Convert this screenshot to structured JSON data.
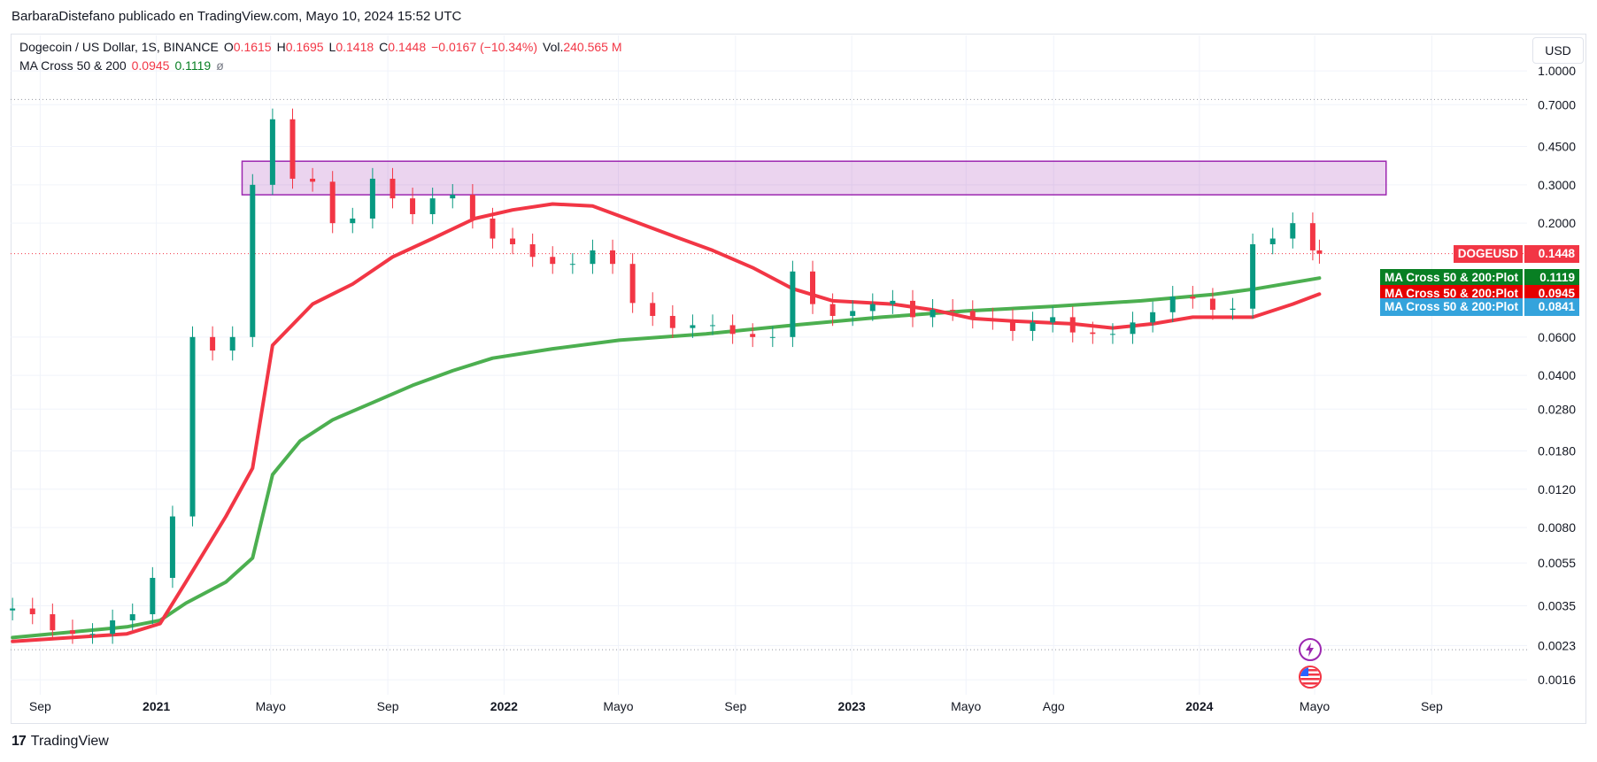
{
  "header": {
    "publisher_line": "BarbaraDistefano publicado en TradingView.com, Mayo 10, 2024 15:52 UTC"
  },
  "legend": {
    "symbol": "Dogecoin / US Dollar, 1S, BINANCE",
    "o_label": "O",
    "o_value": "0.1615",
    "h_label": "H",
    "h_value": "0.1695",
    "l_label": "L",
    "l_value": "0.1418",
    "c_label": "C",
    "c_value": "0.1448",
    "change": "−0.0167 (−10.34%)",
    "vol_label": "Vol.",
    "vol_value": "240.565 M",
    "indicator_name": "MA Cross 50 & 200",
    "indicator_v1": "0.0945",
    "indicator_v2": "0.1119",
    "indicator_v3": "ø"
  },
  "currency_button": "USD",
  "price_tags": [
    {
      "label": "DOGEUSD",
      "value": "0.1448",
      "color": "#f23645",
      "price": 0.1448
    },
    {
      "label": "MA Cross 50 & 200:Plot",
      "value": "0.1119",
      "color": "#087f23",
      "price": 0.1119
    },
    {
      "label": "MA Cross 50 & 200:Plot",
      "value": "0.0945",
      "color": "#e50000",
      "price": 0.0945
    },
    {
      "label": "MA Cross 50 & 200:Plot",
      "value": "0.0841",
      "color": "#34a3dc",
      "price": 0.0841
    }
  ],
  "footer": {
    "logo_mark": "17",
    "brand": "TradingView"
  },
  "icons": [
    "lightning-icon",
    "us-flag-icon"
  ],
  "chart_data": {
    "type": "candlestick",
    "scale": "log",
    "ylim": [
      0.0015,
      1.1
    ],
    "y_ticks": [
      "1.0000",
      "0.7000",
      "0.4500",
      "0.3000",
      "0.2000",
      "0.0600",
      "0.0400",
      "0.0280",
      "0.0180",
      "0.0120",
      "0.0080",
      "0.0055",
      "0.0035",
      "0.0023",
      "0.0016"
    ],
    "x_ticks": [
      {
        "label": "Sep",
        "date": "2020-09-01"
      },
      {
        "label": "2021",
        "date": "2021-01-01"
      },
      {
        "label": "Mayo",
        "date": "2021-05-01"
      },
      {
        "label": "Sep",
        "date": "2021-09-01"
      },
      {
        "label": "2022",
        "date": "2022-01-01"
      },
      {
        "label": "Mayo",
        "date": "2022-05-01"
      },
      {
        "label": "Sep",
        "date": "2022-09-01"
      },
      {
        "label": "2023",
        "date": "2023-01-01"
      },
      {
        "label": "Mayo",
        "date": "2023-05-01"
      },
      {
        "label": "Ago",
        "date": "2023-08-01"
      },
      {
        "label": "2024",
        "date": "2024-01-01"
      },
      {
        "label": "Mayo",
        "date": "2024-05-01"
      },
      {
        "label": "Sep",
        "date": "2024-09-01"
      }
    ],
    "xlim": [
      "2020-08-01",
      "2024-12-10"
    ],
    "zone": {
      "from": "2021-04-01",
      "to": "2024-07-15",
      "low": 0.27,
      "high": 0.385,
      "color": "#9c27b0"
    },
    "horizontal_levels": [
      {
        "price": 0.74,
        "style": "dotted",
        "color": "#9598a1"
      },
      {
        "price": 0.0022,
        "style": "dotted",
        "color": "#9598a1"
      },
      {
        "price": 0.1448,
        "style": "dotted",
        "color": "#f23645"
      }
    ],
    "candles_close": [
      [
        "2020-08-03",
        0.0034
      ],
      [
        "2020-08-24",
        0.0032
      ],
      [
        "2020-09-14",
        0.0027
      ],
      [
        "2020-10-05",
        0.0026
      ],
      [
        "2020-10-26",
        0.0026
      ],
      [
        "2020-11-16",
        0.003
      ],
      [
        "2020-12-07",
        0.0032
      ],
      [
        "2020-12-28",
        0.0047
      ],
      [
        "2021-01-18",
        0.009
      ],
      [
        "2021-02-08",
        0.06
      ],
      [
        "2021-03-01",
        0.052
      ],
      [
        "2021-03-22",
        0.06
      ],
      [
        "2021-04-12",
        0.3
      ],
      [
        "2021-05-03",
        0.6
      ],
      [
        "2021-05-24",
        0.32
      ],
      [
        "2021-06-14",
        0.31
      ],
      [
        "2021-07-05",
        0.2
      ],
      [
        "2021-07-26",
        0.21
      ],
      [
        "2021-08-16",
        0.32
      ],
      [
        "2021-09-06",
        0.26
      ],
      [
        "2021-09-27",
        0.22
      ],
      [
        "2021-10-18",
        0.26
      ],
      [
        "2021-11-08",
        0.27
      ],
      [
        "2021-11-29",
        0.21
      ],
      [
        "2021-12-20",
        0.17
      ],
      [
        "2022-01-10",
        0.16
      ],
      [
        "2022-01-31",
        0.14
      ],
      [
        "2022-02-21",
        0.13
      ],
      [
        "2022-03-14",
        0.13
      ],
      [
        "2022-04-04",
        0.15
      ],
      [
        "2022-04-25",
        0.13
      ],
      [
        "2022-05-16",
        0.086
      ],
      [
        "2022-06-06",
        0.075
      ],
      [
        "2022-06-27",
        0.066
      ],
      [
        "2022-07-18",
        0.068
      ],
      [
        "2022-08-08",
        0.068
      ],
      [
        "2022-08-29",
        0.062
      ],
      [
        "2022-09-19",
        0.06
      ],
      [
        "2022-10-10",
        0.06
      ],
      [
        "2022-10-31",
        0.12
      ],
      [
        "2022-11-21",
        0.085
      ],
      [
        "2022-12-12",
        0.075
      ],
      [
        "2023-01-02",
        0.079
      ],
      [
        "2023-01-23",
        0.085
      ],
      [
        "2023-02-13",
        0.088
      ],
      [
        "2023-03-06",
        0.074
      ],
      [
        "2023-03-27",
        0.08
      ],
      [
        "2023-04-17",
        0.079
      ],
      [
        "2023-05-08",
        0.073
      ],
      [
        "2023-05-29",
        0.072
      ],
      [
        "2023-06-19",
        0.064
      ],
      [
        "2023-07-10",
        0.07
      ],
      [
        "2023-07-31",
        0.074
      ],
      [
        "2023-08-21",
        0.063
      ],
      [
        "2023-09-11",
        0.062
      ],
      [
        "2023-10-02",
        0.062
      ],
      [
        "2023-10-23",
        0.07
      ],
      [
        "2023-11-13",
        0.078
      ],
      [
        "2023-12-04",
        0.092
      ],
      [
        "2023-12-25",
        0.09
      ],
      [
        "2024-01-15",
        0.08
      ],
      [
        "2024-02-05",
        0.081
      ],
      [
        "2024-02-26",
        0.16
      ],
      [
        "2024-03-18",
        0.17
      ],
      [
        "2024-04-08",
        0.2
      ],
      [
        "2024-04-29",
        0.15
      ],
      [
        "2024-05-06",
        0.1448
      ]
    ],
    "series": [
      {
        "name": "MA Cross 50 & 200",
        "type": "line",
        "color": "#4caf50",
        "values": [
          [
            "2020-08-03",
            0.0025
          ],
          [
            "2020-12-01",
            0.0028
          ],
          [
            "2021-01-05",
            0.003
          ],
          [
            "2021-02-01",
            0.0036
          ],
          [
            "2021-03-15",
            0.0045
          ],
          [
            "2021-04-12",
            0.0058
          ],
          [
            "2021-05-03",
            0.014
          ],
          [
            "2021-06-01",
            0.02
          ],
          [
            "2021-07-05",
            0.025
          ],
          [
            "2021-08-16",
            0.03
          ],
          [
            "2021-09-27",
            0.036
          ],
          [
            "2021-11-08",
            0.042
          ],
          [
            "2021-12-20",
            0.048
          ],
          [
            "2022-02-21",
            0.053
          ],
          [
            "2022-05-02",
            0.058
          ],
          [
            "2022-08-01",
            0.062
          ],
          [
            "2022-11-01",
            0.068
          ],
          [
            "2023-02-01",
            0.074
          ],
          [
            "2023-05-01",
            0.079
          ],
          [
            "2023-08-01",
            0.083
          ],
          [
            "2023-11-01",
            0.088
          ],
          [
            "2024-01-15",
            0.094
          ],
          [
            "2024-03-01",
            0.1
          ],
          [
            "2024-05-06",
            0.1119
          ]
        ]
      },
      {
        "name": "MA Cross 50 & 200",
        "type": "line",
        "color": "#f23645",
        "values": [
          [
            "2020-08-03",
            0.0024
          ],
          [
            "2020-12-01",
            0.0026
          ],
          [
            "2021-01-05",
            0.0029
          ],
          [
            "2021-02-01",
            0.0045
          ],
          [
            "2021-03-15",
            0.009
          ],
          [
            "2021-04-12",
            0.015
          ],
          [
            "2021-05-03",
            0.055
          ],
          [
            "2021-06-14",
            0.085
          ],
          [
            "2021-07-26",
            0.105
          ],
          [
            "2021-09-06",
            0.14
          ],
          [
            "2021-10-18",
            0.17
          ],
          [
            "2021-12-01",
            0.21
          ],
          [
            "2022-01-10",
            0.23
          ],
          [
            "2022-02-21",
            0.245
          ],
          [
            "2022-04-04",
            0.24
          ],
          [
            "2022-05-16",
            0.205
          ],
          [
            "2022-06-27",
            0.175
          ],
          [
            "2022-08-08",
            0.15
          ],
          [
            "2022-09-19",
            0.125
          ],
          [
            "2022-10-31",
            0.1
          ],
          [
            "2022-12-12",
            0.088
          ],
          [
            "2023-02-13",
            0.085
          ],
          [
            "2023-03-27",
            0.08
          ],
          [
            "2023-05-08",
            0.073
          ],
          [
            "2023-06-19",
            0.071
          ],
          [
            "2023-08-21",
            0.069
          ],
          [
            "2023-10-02",
            0.066
          ],
          [
            "2023-11-13",
            0.069
          ],
          [
            "2023-12-25",
            0.074
          ],
          [
            "2024-02-26",
            0.074
          ],
          [
            "2024-04-08",
            0.085
          ],
          [
            "2024-05-06",
            0.0945
          ]
        ]
      }
    ]
  }
}
